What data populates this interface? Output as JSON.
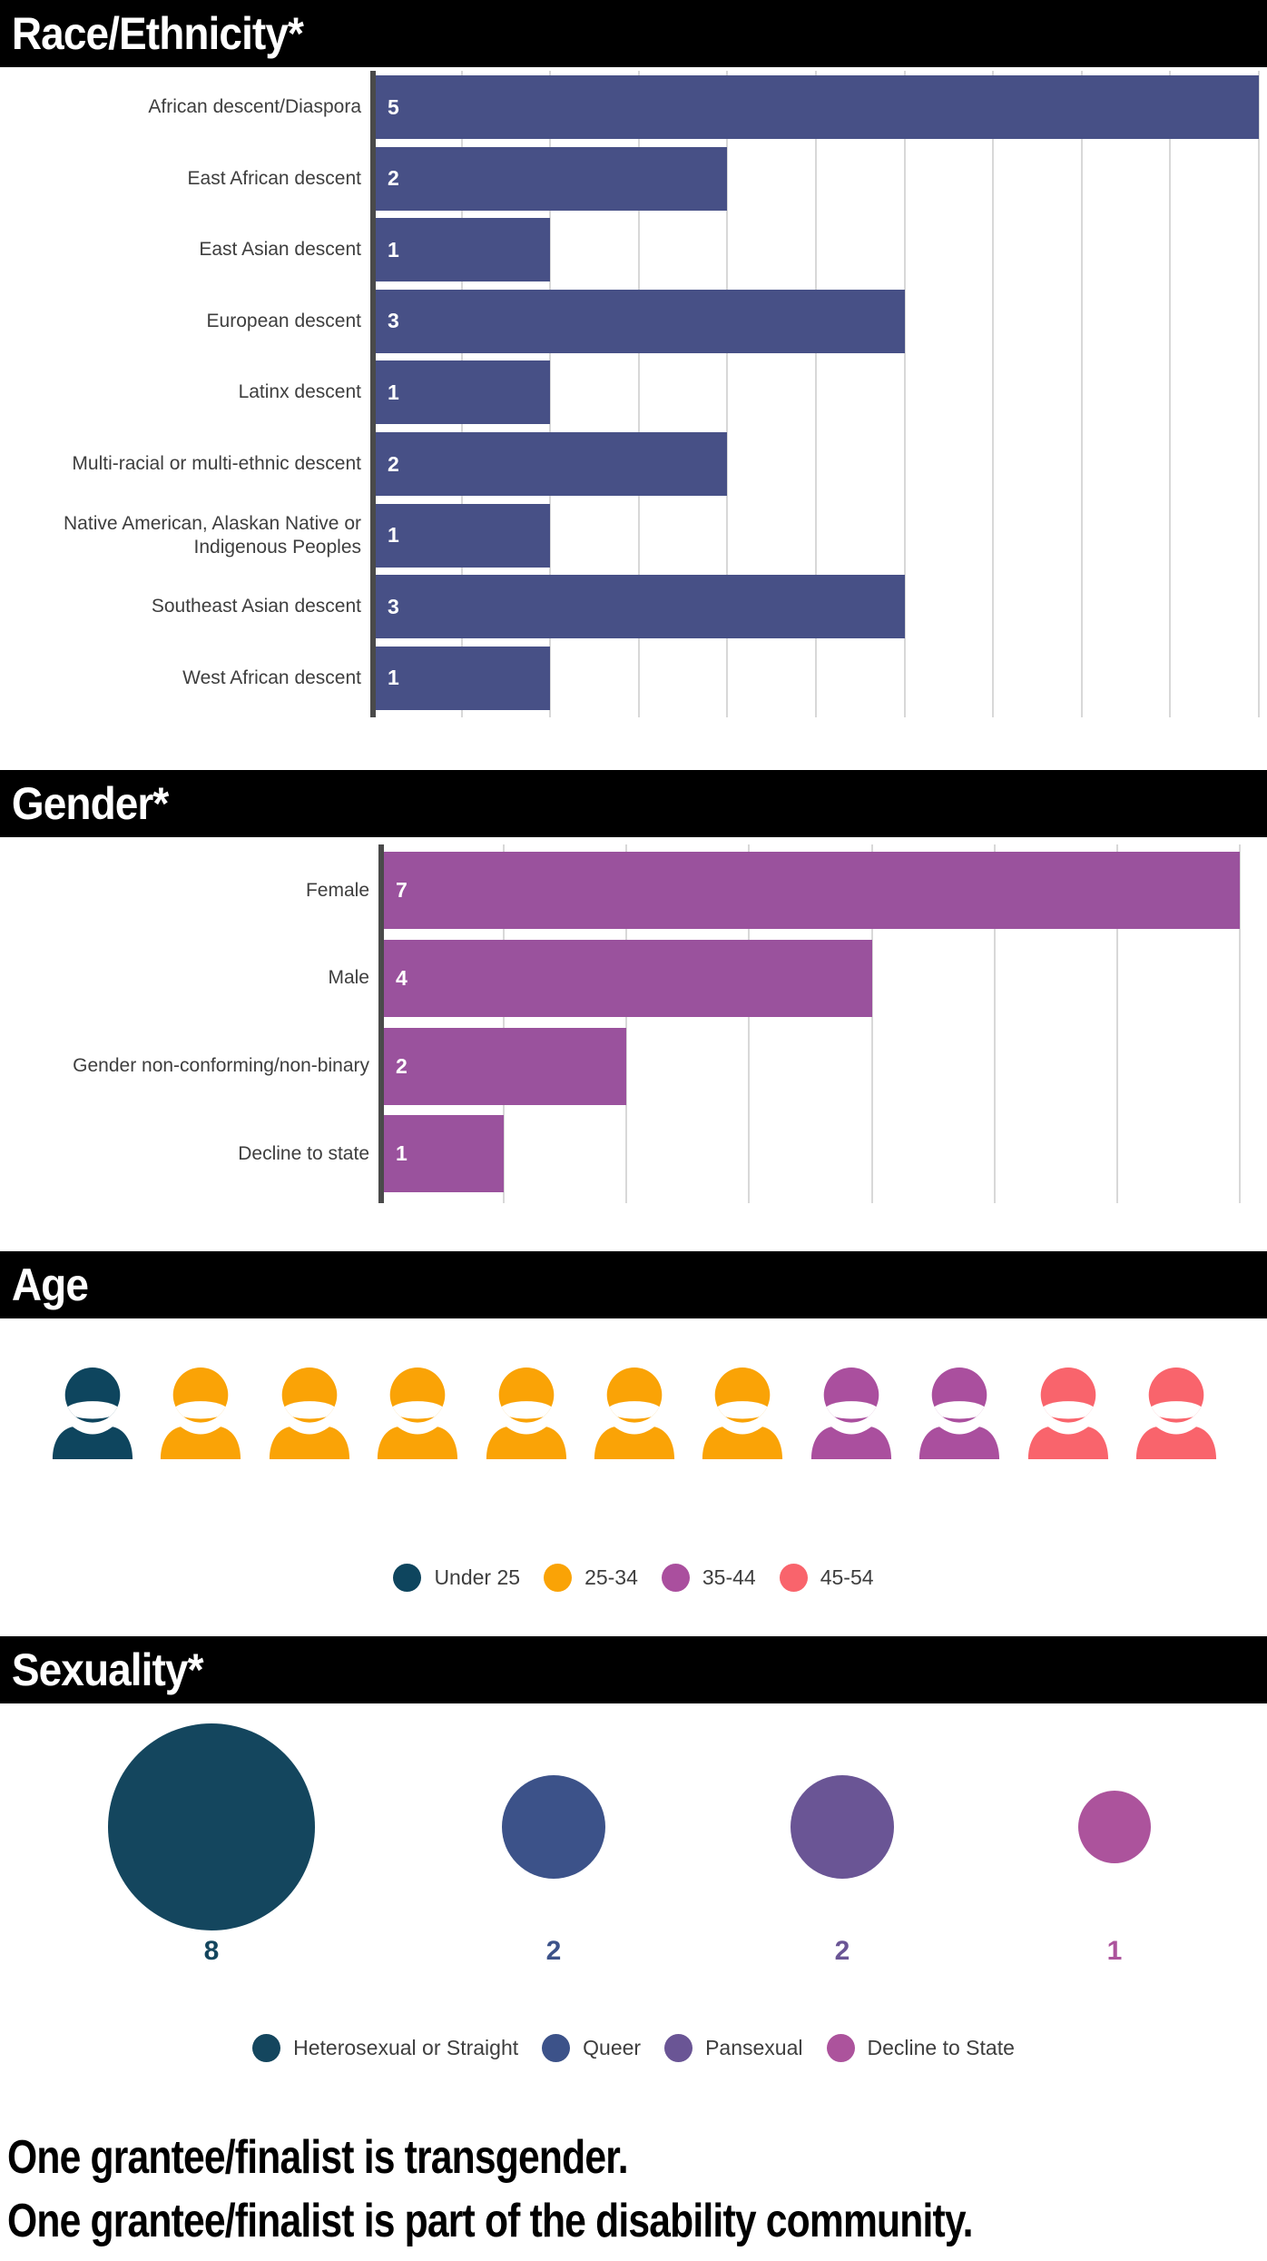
{
  "style_tokens": {
    "header_bg": "#000000",
    "header_text": "#FFFFFF",
    "label_color": "#3E3E3E",
    "gridline_color": "#D8D8D8",
    "axis_color": "#4A4A4A",
    "background": "#FFFFFF"
  },
  "sections": {
    "race": {
      "title": "Race/Ethnicity*",
      "chart_data": {
        "type": "bar",
        "orientation": "horizontal",
        "categories": [
          "African descent/Diaspora",
          "East African descent",
          "East Asian descent",
          "European descent",
          "Latinx descent",
          "Multi-racial or multi-ethnic descent",
          "Native American, Alaskan Native or Indigenous Peoples",
          "Southeast Asian descent",
          "West African descent"
        ],
        "values": [
          5,
          2,
          1,
          3,
          1,
          2,
          1,
          3,
          1
        ],
        "bar_color": "#475086",
        "value_label_color": "#FFFFFF",
        "value_labels": "inside-start",
        "axis_max": 5,
        "gridline_every": 0.5,
        "grid": true
      }
    },
    "gender": {
      "title": "Gender*",
      "chart_data": {
        "type": "bar",
        "orientation": "horizontal",
        "categories": [
          "Female",
          "Male",
          "Gender non-conforming/non-binary",
          "Decline to state"
        ],
        "values": [
          7,
          4,
          2,
          1
        ],
        "bar_color": "#9A529D",
        "value_label_color": "#FFFFFF",
        "value_labels": "inside-start",
        "axis_max": 7,
        "gridline_every": 1,
        "grid": true
      }
    },
    "age": {
      "title": "Age",
      "chart_data": {
        "type": "pictogram",
        "icon": "person",
        "total": 11,
        "groups": [
          {
            "label": "Under 25",
            "count": 1,
            "color": "#0E455E"
          },
          {
            "label": "25-34",
            "count": 6,
            "color": "#FAA306"
          },
          {
            "label": "35-44",
            "count": 2,
            "color": "#AA4F9E"
          },
          {
            "label": "45-54",
            "count": 2,
            "color": "#F9646C"
          }
        ],
        "legend_position": "bottom-center"
      }
    },
    "sexuality": {
      "title": "Sexuality*",
      "chart_data": {
        "type": "bubble",
        "items": [
          {
            "label": "Heterosexual or Straight",
            "value": 8,
            "color": "#14465E"
          },
          {
            "label": "Queer",
            "value": 2,
            "color": "#3C5289"
          },
          {
            "label": "Pansexual",
            "value": 2,
            "color": "#6A5595"
          },
          {
            "label": "Decline to State",
            "value": 1,
            "color": "#AC539C"
          }
        ],
        "value_labels": "below",
        "legend_position": "bottom-center"
      }
    },
    "notes": {
      "lines": [
        "One grantee/finalist is transgender.",
        "One grantee/finalist is part of the disability community."
      ]
    }
  }
}
